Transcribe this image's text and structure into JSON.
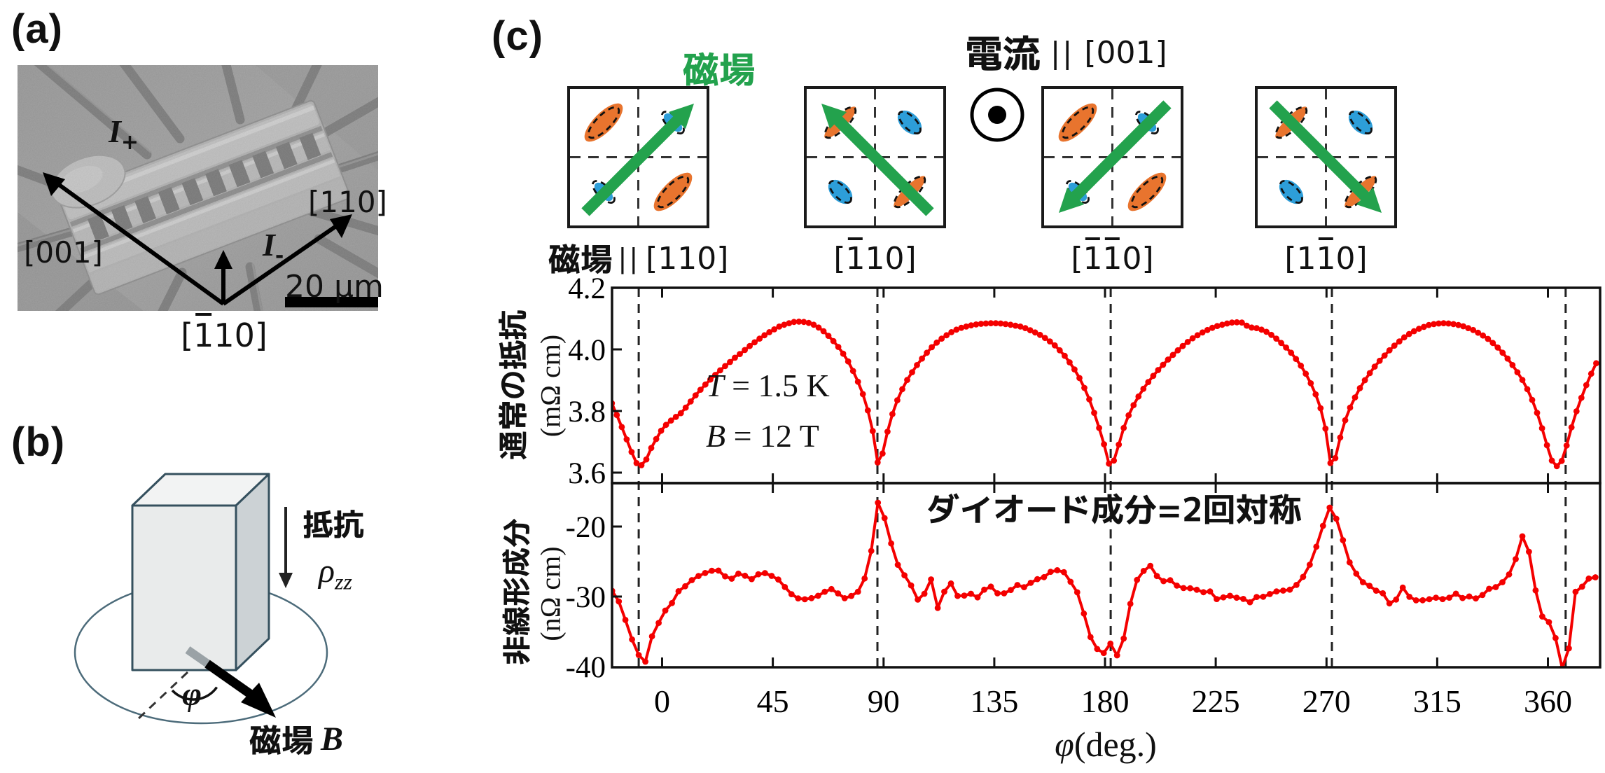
{
  "colors": {
    "curve": "#f40000",
    "green": "#23a24d",
    "orange": "#e8742e",
    "blue": "#2d9ed9",
    "cuboid_edge": "#35505e",
    "axis": "#111111"
  },
  "panel_a": {
    "label": "(a)",
    "current_plus": {
      "base": "I",
      "sub": "+"
    },
    "current_minus": {
      "base": "I",
      "sub": "-"
    },
    "dir_upleft": "[001]",
    "dir_upright": "[110]",
    "dir_bottom": [
      {
        "t": "["
      },
      {
        "t": "1",
        "over": true
      },
      {
        "t": "10]"
      }
    ],
    "scale_bar": "20 μm"
  },
  "panel_b": {
    "label": "(b)",
    "resistance_label": "抵抗",
    "rho": {
      "base": "ρ",
      "sub": "zz"
    },
    "angle_symbol": "φ",
    "field_label": "磁場",
    "field_symbol": "B"
  },
  "panel_c": {
    "label": "(c)",
    "field_word": "磁場",
    "current_word": "電流",
    "parallel": "||",
    "current_dir": "[001]",
    "current_out_symbol": "⊙",
    "squares": [
      {
        "prefix": "磁場",
        "parallel": "||",
        "label": [
          {
            "t": "[110]"
          }
        ],
        "arrow": "ne",
        "state": "orange_major"
      },
      {
        "label": [
          {
            "t": "["
          },
          {
            "t": "1",
            "over": true
          },
          {
            "t": "10]"
          }
        ],
        "arrow": "nw",
        "state": "blue_major"
      },
      {
        "label": [
          {
            "t": "["
          },
          {
            "t": "1",
            "over": true
          },
          {
            "t": "1",
            "over": true
          },
          {
            "t": "0]"
          }
        ],
        "arrow": "sw",
        "state": "orange_major"
      },
      {
        "label": [
          {
            "t": "[1"
          },
          {
            "t": "1",
            "over": true
          },
          {
            "t": "0]"
          }
        ],
        "arrow": "se",
        "state": "blue_major"
      }
    ]
  },
  "chart_data": [
    {
      "type": "line",
      "panel": "top",
      "series_name": "normal resistance",
      "ylabel": "通常の抵抗",
      "yunit": "(mΩ cm)",
      "yticks": [
        4.2,
        4.0,
        3.8,
        3.6
      ],
      "ylim": [
        3.566,
        4.2
      ],
      "annotation_lines": [
        {
          "pre": "T",
          "post": " = 1.5 K"
        },
        {
          "pre": "B",
          "post": " = 12 T"
        }
      ],
      "x": [
        -20.4,
        -18.4,
        -16.4,
        -14.4,
        -12.4,
        -10.4,
        -8.4,
        -6.4,
        -4.4,
        -2.4,
        -0.4,
        1.6,
        3.6,
        5.6,
        7.6,
        9.6,
        11.6,
        13.6,
        15.6,
        17.6,
        19.6,
        21.6,
        23.6,
        25.6,
        27.6,
        29.6,
        31.6,
        33.6,
        35.6,
        37.6,
        39.6,
        41.6,
        43.6,
        45.6,
        47.6,
        49.6,
        51.6,
        53.6,
        55.6,
        57.6,
        59.6,
        61.6,
        63.6,
        65.6,
        67.6,
        69.6,
        71.6,
        73.6,
        75.6,
        77.6,
        79.6,
        81.6,
        83.6,
        85.6,
        87.6,
        89.6,
        91.6,
        93.6,
        95.6,
        97.6,
        99.6,
        101.6,
        103.6,
        105.6,
        107.6,
        109.6,
        111.6,
        113.6,
        115.6,
        117.6,
        119.6,
        121.6,
        123.6,
        125.6,
        127.6,
        129.6,
        131.6,
        133.6,
        135.6,
        137.6,
        139.6,
        141.6,
        143.6,
        145.6,
        147.6,
        149.6,
        151.6,
        153.6,
        155.6,
        157.6,
        159.6,
        161.6,
        163.6,
        165.6,
        167.6,
        169.6,
        171.6,
        173.6,
        175.6,
        177.6,
        179.6,
        181.6,
        183.6,
        185.6,
        187.6,
        189.6,
        191.6,
        193.6,
        195.6,
        197.6,
        199.6,
        201.6,
        203.6,
        205.6,
        207.6,
        209.6,
        211.6,
        213.6,
        215.6,
        217.6,
        219.6,
        221.6,
        223.6,
        225.6,
        227.6,
        229.6,
        231.6,
        233.6,
        235.6,
        237.6,
        239.6,
        241.6,
        243.6,
        245.6,
        247.6,
        249.6,
        251.6,
        253.6,
        255.6,
        257.6,
        259.6,
        261.6,
        263.6,
        265.6,
        267.6,
        269.6,
        271.6,
        273.6,
        275.6,
        277.6,
        279.6,
        281.6,
        283.6,
        285.6,
        287.6,
        289.6,
        291.6,
        293.6,
        295.6,
        297.6,
        299.6,
        301.6,
        303.6,
        305.6,
        307.6,
        309.6,
        311.6,
        313.6,
        315.6,
        317.6,
        319.6,
        321.6,
        323.6,
        325.6,
        327.6,
        329.6,
        331.6,
        333.6,
        335.6,
        337.6,
        339.6,
        341.6,
        343.6,
        345.6,
        347.6,
        349.6,
        351.6,
        353.6,
        355.6,
        357.6,
        359.6,
        361.6,
        363.6,
        365.6,
        367.6,
        369.6,
        371.6,
        373.6,
        375.6,
        377.6,
        379.6
      ],
      "y": [
        3.825,
        3.787,
        3.748,
        3.708,
        3.667,
        3.631,
        3.624,
        3.643,
        3.68,
        3.709,
        3.736,
        3.755,
        3.769,
        3.781,
        3.793,
        3.811,
        3.831,
        3.851,
        3.869,
        3.886,
        3.902,
        3.917,
        3.932,
        3.946,
        3.959,
        3.973,
        3.985,
        3.998,
        4.011,
        4.023,
        4.035,
        4.046,
        4.056,
        4.065,
        4.074,
        4.08,
        4.085,
        4.089,
        4.09,
        4.089,
        4.086,
        4.08,
        4.071,
        4.059,
        4.044,
        4.027,
        4.008,
        3.986,
        3.961,
        3.93,
        3.895,
        3.855,
        3.802,
        3.735,
        3.633,
        3.662,
        3.733,
        3.79,
        3.835,
        3.871,
        3.901,
        3.926,
        3.949,
        3.97,
        3.989,
        4.007,
        4.022,
        4.035,
        4.046,
        4.056,
        4.064,
        4.07,
        4.074,
        4.078,
        4.081,
        4.083,
        4.084,
        4.085,
        4.085,
        4.084,
        4.082,
        4.08,
        4.077,
        4.074,
        4.069,
        4.062,
        4.055,
        4.047,
        4.037,
        4.026,
        4.013,
        3.997,
        3.979,
        3.958,
        3.935,
        3.907,
        3.875,
        3.838,
        3.794,
        3.745,
        3.692,
        3.629,
        3.639,
        3.691,
        3.745,
        3.786,
        3.819,
        3.847,
        3.872,
        3.894,
        3.914,
        3.933,
        3.95,
        3.967,
        3.982,
        3.997,
        4.011,
        4.024,
        4.036,
        4.046,
        4.055,
        4.063,
        4.07,
        4.076,
        4.08,
        4.084,
        4.087,
        4.088,
        4.087,
        4.077,
        4.071,
        4.069,
        4.064,
        4.057,
        4.047,
        4.035,
        4.021,
        4.006,
        3.989,
        3.969,
        3.947,
        3.921,
        3.89,
        3.854,
        3.809,
        3.743,
        3.631,
        3.647,
        3.714,
        3.77,
        3.811,
        3.844,
        3.874,
        3.9,
        3.923,
        3.944,
        3.963,
        3.98,
        3.997,
        4.012,
        4.026,
        4.039,
        4.05,
        4.059,
        4.067,
        4.073,
        4.079,
        4.082,
        4.084,
        4.085,
        4.084,
        4.082,
        4.079,
        4.075,
        4.069,
        4.063,
        4.054,
        4.045,
        4.034,
        4.021,
        4.006,
        3.989,
        3.97,
        3.949,
        3.926,
        3.901,
        3.871,
        3.836,
        3.794,
        3.744,
        3.689,
        3.639,
        3.621,
        3.638,
        3.688,
        3.747,
        3.799,
        3.843,
        3.884,
        3.921,
        3.955
      ]
    },
    {
      "type": "line",
      "panel": "bottom",
      "series_name": "nonlinear component",
      "ylabel": "非線形成分",
      "yunit": "(nΩ cm)",
      "yticks": [
        -20,
        -30,
        -40
      ],
      "ylim": [
        -40.1,
        -13.8
      ],
      "annotation": "ダイオード成分=2回対称",
      "x": [
        -20.3,
        -17.6,
        -14.9,
        -12.2,
        -9.5,
        -6.8,
        -4.1,
        -1.4,
        1.3,
        4.0,
        6.7,
        9.4,
        12.1,
        14.8,
        17.5,
        20.2,
        22.9,
        25.6,
        28.3,
        31.0,
        33.7,
        36.4,
        39.1,
        41.8,
        44.5,
        47.2,
        49.9,
        52.6,
        55.3,
        58.0,
        60.7,
        63.4,
        66.1,
        68.8,
        71.5,
        74.2,
        76.9,
        79.6,
        82.3,
        85.0,
        87.7,
        90.4,
        93.1,
        95.8,
        98.5,
        101.2,
        103.9,
        106.6,
        109.3,
        112.0,
        114.7,
        117.4,
        120.1,
        122.8,
        125.5,
        128.2,
        130.9,
        133.6,
        136.3,
        139.0,
        141.7,
        144.4,
        147.1,
        149.8,
        152.5,
        155.2,
        157.9,
        160.6,
        163.3,
        166.0,
        168.7,
        171.4,
        174.1,
        176.8,
        179.5,
        182.2,
        184.9,
        187.6,
        190.3,
        193.0,
        195.7,
        198.4,
        201.1,
        203.8,
        206.5,
        209.2,
        211.9,
        214.6,
        217.3,
        220.0,
        222.7,
        225.4,
        228.1,
        230.8,
        233.5,
        236.2,
        238.9,
        241.6,
        244.3,
        247.0,
        249.7,
        252.4,
        255.1,
        257.8,
        260.5,
        263.2,
        265.9,
        268.6,
        271.3,
        274.0,
        276.7,
        279.4,
        282.1,
        284.8,
        287.5,
        290.2,
        292.9,
        295.6,
        298.3,
        301.0,
        303.7,
        306.4,
        309.1,
        311.8,
        314.5,
        317.2,
        319.9,
        322.6,
        325.3,
        328.0,
        330.7,
        333.4,
        336.1,
        338.8,
        341.5,
        344.2,
        346.9,
        349.6,
        352.3,
        355.0,
        357.7,
        360.4,
        363.1,
        365.8,
        368.5,
        371.2,
        373.9,
        376.6,
        379.3
      ],
      "y": [
        -29.19,
        -30.7,
        -33.34,
        -36.13,
        -38.35,
        -39.3,
        -35.68,
        -33.76,
        -32.0,
        -30.93,
        -29.24,
        -28.53,
        -27.65,
        -27.06,
        -26.64,
        -26.31,
        -26.29,
        -27.12,
        -27.45,
        -26.73,
        -27.03,
        -27.51,
        -26.82,
        -26.65,
        -27.05,
        -27.57,
        -28.64,
        -29.66,
        -30.26,
        -30.39,
        -30.23,
        -29.89,
        -29.31,
        -28.93,
        -29.55,
        -30.24,
        -29.91,
        -29.31,
        -27.42,
        -23.48,
        -16.6,
        -18.8,
        -22.42,
        -25.46,
        -26.97,
        -28.41,
        -30.44,
        -29.6,
        -27.55,
        -31.63,
        -29.3,
        -28.13,
        -29.91,
        -29.86,
        -29.6,
        -30.12,
        -29.02,
        -28.58,
        -29.54,
        -29.54,
        -29.07,
        -28.35,
        -28.66,
        -28.04,
        -27.51,
        -27.23,
        -26.47,
        -26.24,
        -26.52,
        -27.89,
        -29.39,
        -32.43,
        -35.79,
        -37.49,
        -38.07,
        -36.72,
        -38.4,
        -36.0,
        -31.04,
        -27.62,
        -26.34,
        -25.61,
        -27.07,
        -27.8,
        -27.67,
        -28.44,
        -28.79,
        -28.82,
        -29.03,
        -29.38,
        -29.27,
        -30.36,
        -30.12,
        -29.89,
        -30.17,
        -30.34,
        -30.81,
        -30.06,
        -30.03,
        -29.64,
        -29.26,
        -29.15,
        -29.02,
        -28.34,
        -27.19,
        -25.45,
        -22.88,
        -19.9,
        -17.3,
        -18.89,
        -21.95,
        -25.12,
        -26.73,
        -27.95,
        -28.46,
        -29.16,
        -29.53,
        -30.98,
        -30.43,
        -28.72,
        -30.04,
        -30.54,
        -30.53,
        -30.38,
        -30.17,
        -30.37,
        -30.16,
        -29.59,
        -30.21,
        -29.99,
        -30.27,
        -29.78,
        -28.89,
        -28.65,
        -27.95,
        -26.84,
        -24.65,
        -21.4,
        -23.6,
        -29.12,
        -32.85,
        -33.65,
        -35.93,
        -40.2,
        -37.4,
        -29.32,
        -28.59,
        -27.43,
        -27.25
      ]
    }
  ],
  "x_axis": {
    "label_symbol": "φ",
    "label_rest": "(deg.)",
    "ticks": [
      0,
      45,
      90,
      135,
      180,
      225,
      270,
      315,
      360
    ],
    "lim": [
      -20.4,
      381.3
    ],
    "dashed_lines": [
      -9.5,
      87.5,
      182.3,
      272.2,
      367.2
    ]
  }
}
